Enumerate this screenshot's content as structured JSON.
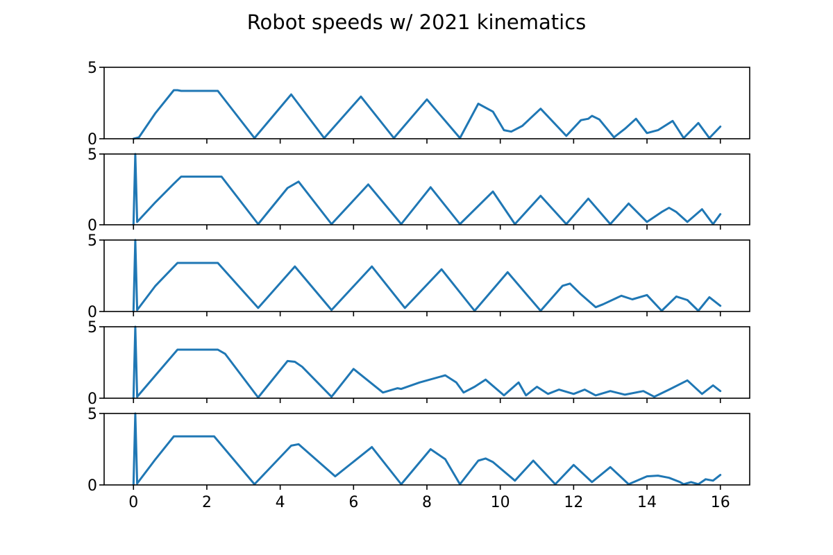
{
  "chart_data": {
    "type": "line",
    "title": "Robot speeds w/ 2021 kinematics",
    "layout": "5 stacked subplots sharing x axis",
    "series_color": "#1f77b4",
    "x_ticks": [
      0,
      2,
      4,
      6,
      8,
      10,
      12,
      14,
      16
    ],
    "xlim": [
      -0.8,
      16.8
    ],
    "subplots": [
      {
        "ylim": [
          0,
          5
        ],
        "y_ticks": [
          0,
          5
        ],
        "x": [
          0.0,
          0.15,
          0.6,
          1.1,
          1.2,
          1.3,
          2.3,
          3.3,
          4.3,
          5.2,
          6.2,
          7.1,
          8.0,
          8.9,
          9.4,
          9.8,
          10.1,
          10.3,
          10.6,
          11.1,
          11.8,
          12.2,
          12.4,
          12.5,
          12.7,
          13.1,
          13.4,
          13.7,
          14.0,
          14.3,
          14.7,
          15.0,
          15.4,
          15.7,
          16.0
        ],
        "y": [
          0.0,
          0.1,
          1.8,
          3.4,
          3.4,
          3.35,
          3.35,
          0.05,
          3.1,
          0.05,
          2.95,
          0.05,
          2.75,
          0.05,
          2.45,
          1.9,
          0.6,
          0.5,
          0.9,
          2.1,
          0.2,
          1.3,
          1.4,
          1.6,
          1.35,
          0.1,
          0.7,
          1.4,
          0.4,
          0.6,
          1.25,
          0.05,
          1.1,
          0.05,
          0.85
        ]
      },
      {
        "ylim": [
          0,
          5
        ],
        "y_ticks": [
          0,
          5
        ],
        "x": [
          0.0,
          0.05,
          0.1,
          0.6,
          1.1,
          1.3,
          2.4,
          3.4,
          4.2,
          4.5,
          5.4,
          6.4,
          7.3,
          8.1,
          8.9,
          9.8,
          10.4,
          11.1,
          11.8,
          12.4,
          13.0,
          13.5,
          14.0,
          14.4,
          14.6,
          14.8,
          15.1,
          15.5,
          15.8,
          16.0
        ],
        "y": [
          0.0,
          5.0,
          0.2,
          1.6,
          2.9,
          3.4,
          3.4,
          0.05,
          2.6,
          3.05,
          0.05,
          2.85,
          0.05,
          2.65,
          0.05,
          2.35,
          0.05,
          2.05,
          0.05,
          1.85,
          0.05,
          1.5,
          0.2,
          0.9,
          1.2,
          0.9,
          0.2,
          1.1,
          0.05,
          0.75
        ]
      },
      {
        "ylim": [
          0,
          5
        ],
        "y_ticks": [
          0,
          5
        ],
        "x": [
          0.0,
          0.05,
          0.1,
          0.6,
          1.2,
          2.3,
          3.4,
          4.4,
          5.4,
          6.5,
          7.4,
          8.4,
          9.3,
          10.2,
          11.1,
          11.7,
          11.9,
          12.2,
          12.6,
          12.8,
          13.3,
          13.6,
          14.0,
          14.4,
          14.8,
          15.1,
          15.4,
          15.7,
          16.0
        ],
        "y": [
          0.0,
          5.0,
          0.1,
          1.8,
          3.4,
          3.4,
          0.25,
          3.15,
          0.1,
          3.15,
          0.25,
          2.95,
          0.05,
          2.75,
          0.05,
          1.8,
          1.95,
          1.2,
          0.3,
          0.5,
          1.1,
          0.85,
          1.15,
          0.05,
          1.05,
          0.8,
          0.05,
          1.0,
          0.4
        ]
      },
      {
        "ylim": [
          0,
          5
        ],
        "y_ticks": [
          0,
          5
        ],
        "x": [
          0.0,
          0.05,
          0.1,
          0.6,
          1.2,
          2.3,
          2.5,
          3.4,
          4.2,
          4.4,
          4.6,
          5.4,
          6.0,
          6.8,
          7.2,
          7.3,
          7.8,
          8.5,
          8.8,
          9.0,
          9.3,
          9.6,
          10.1,
          10.5,
          10.7,
          11.0,
          11.3,
          11.6,
          12.0,
          12.3,
          12.6,
          13.0,
          13.4,
          13.9,
          14.2,
          14.6,
          15.1,
          15.5,
          15.8,
          16.0
        ],
        "y": [
          0.0,
          5.0,
          0.1,
          1.6,
          3.4,
          3.4,
          3.1,
          0.05,
          2.6,
          2.55,
          2.2,
          0.1,
          2.05,
          0.4,
          0.7,
          0.65,
          1.1,
          1.6,
          1.1,
          0.4,
          0.8,
          1.3,
          0.2,
          1.1,
          0.2,
          0.8,
          0.3,
          0.6,
          0.3,
          0.6,
          0.2,
          0.5,
          0.25,
          0.5,
          0.1,
          0.6,
          1.25,
          0.3,
          0.9,
          0.5
        ]
      },
      {
        "ylim": [
          0,
          5
        ],
        "y_ticks": [
          0,
          5
        ],
        "x": [
          0.0,
          0.05,
          0.1,
          0.6,
          1.1,
          2.2,
          3.3,
          4.3,
          4.5,
          5.5,
          6.5,
          7.3,
          8.1,
          8.5,
          8.9,
          9.4,
          9.6,
          9.8,
          10.4,
          10.9,
          11.5,
          12.0,
          12.5,
          13.0,
          13.5,
          14.0,
          14.3,
          14.6,
          14.9,
          15.0,
          15.2,
          15.4,
          15.6,
          15.8,
          16.0
        ],
        "y": [
          0.0,
          5.0,
          0.1,
          1.8,
          3.4,
          3.4,
          0.05,
          2.75,
          2.85,
          0.6,
          2.65,
          0.05,
          2.5,
          1.8,
          0.05,
          1.7,
          1.85,
          1.6,
          0.3,
          1.7,
          0.05,
          1.4,
          0.2,
          1.25,
          0.05,
          0.6,
          0.65,
          0.5,
          0.2,
          0.05,
          0.2,
          0.05,
          0.4,
          0.3,
          0.7
        ]
      }
    ]
  }
}
